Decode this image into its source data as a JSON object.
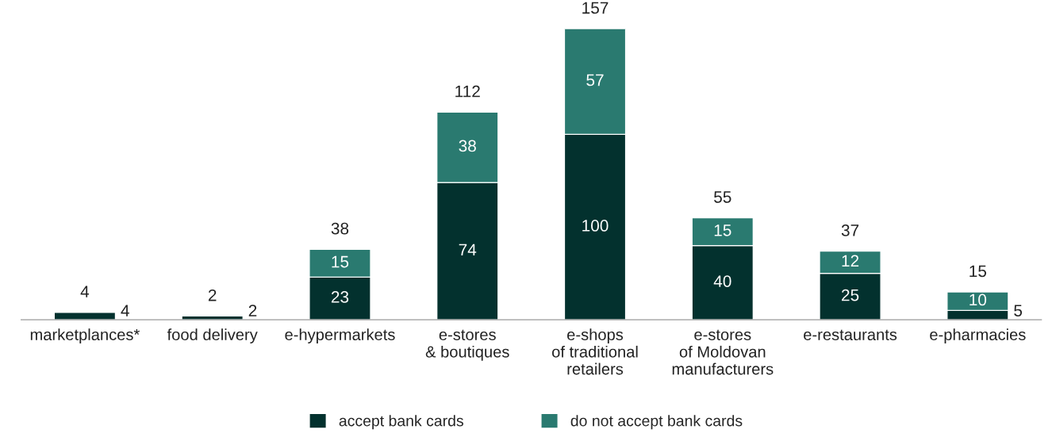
{
  "chart_data": {
    "type": "bar",
    "stacked": true,
    "data_labels": true,
    "legend": "bottom",
    "grid": false,
    "categories": [
      "marketplances*",
      "food delivery",
      "e-hypermarkets",
      "e-stores\n& boutiques",
      "e-shops\nof traditional\nretailers",
      "e-stores\nof Moldovan\nmanufacturers",
      "e-restaurants",
      "e-pharmacies"
    ],
    "series": [
      {
        "name": "accept bank cards",
        "color": "#03312e",
        "values": [
          4,
          2,
          23,
          74,
          100,
          40,
          25,
          5
        ]
      },
      {
        "name": "do not accept bank cards",
        "color": "#2a7a70",
        "values": [
          null,
          null,
          15,
          38,
          57,
          15,
          12,
          10
        ]
      }
    ],
    "totals": [
      "4",
      "2",
      "38",
      "112",
      "157",
      "55",
      "37",
      "15"
    ]
  }
}
